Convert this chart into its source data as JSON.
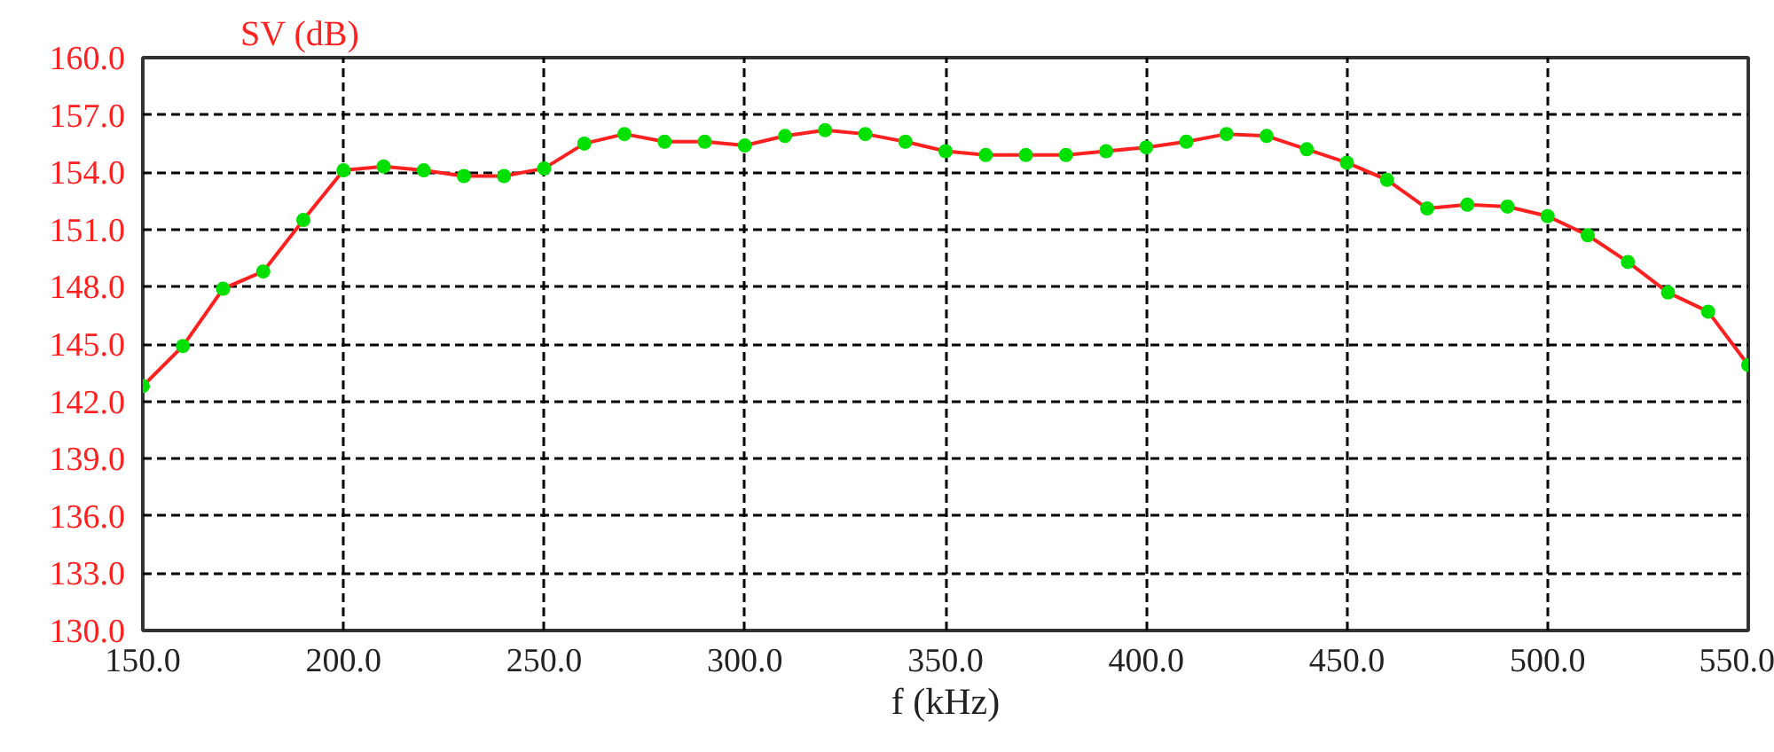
{
  "chart_data": {
    "type": "line",
    "ylabel": "SV (dB)",
    "xlabel": "f (kHz)",
    "x": [
      150,
      160,
      170,
      180,
      190,
      200,
      210,
      220,
      230,
      240,
      250,
      260,
      270,
      280,
      290,
      300,
      310,
      320,
      330,
      340,
      350,
      360,
      370,
      380,
      390,
      400,
      410,
      420,
      430,
      440,
      450,
      460,
      470,
      480,
      490,
      500,
      510,
      520,
      530,
      540,
      550
    ],
    "series": [
      {
        "color": "#ff2020",
        "colors": [
          "#00e000",
          "#00e000",
          "#00e000",
          "#00e000",
          "#00e000",
          "#00e000",
          "#00e000",
          "#00e000",
          "#00e000",
          "#00e000",
          "#00e000",
          "#00e000",
          "#00e000",
          "#00e000",
          "#00e000",
          "#00e000",
          "#00e000",
          "#00e000",
          "#00e000",
          "#00e000",
          "#00e000",
          "#00e000",
          "#00e000",
          "#00e000",
          "#00e000",
          "#00e000",
          "#00e000",
          "#00e000",
          "#00e000",
          "#00e000",
          "#00e000",
          "#00e000",
          "#00e000",
          "#00e000",
          "#00e000",
          "#00e000",
          "#00e000",
          "#00e000",
          "#00e000",
          "#00e000",
          "#00e000"
        ],
        "values": [
          142.8,
          144.9,
          147.9,
          148.8,
          151.5,
          154.1,
          154.3,
          154.1,
          153.8,
          153.8,
          154.2,
          155.5,
          156.0,
          155.6,
          155.6,
          155.4,
          155.9,
          156.2,
          156.0,
          155.6,
          155.1,
          154.9,
          154.9,
          154.9,
          155.1,
          155.3,
          155.6,
          156.0,
          155.9,
          155.2,
          154.5,
          153.6,
          152.1,
          152.3,
          152.2,
          151.7,
          150.7,
          149.3,
          147.7,
          146.7,
          143.9
        ]
      }
    ],
    "xlim": [
      150,
      550
    ],
    "ylim": [
      130,
      160
    ],
    "xticks": [
      {
        "value": 150,
        "label": "150.0"
      },
      {
        "value": 200,
        "label": "200.0"
      },
      {
        "value": 250,
        "label": "250.0"
      },
      {
        "value": 300,
        "label": "300.0"
      },
      {
        "value": 350,
        "label": "350.0"
      },
      {
        "value": 400,
        "label": "400.0"
      },
      {
        "value": 450,
        "label": "450.0"
      },
      {
        "value": 500,
        "label": "500.0"
      },
      {
        "value": 550,
        "label": "550.0"
      }
    ],
    "yticks": [
      {
        "value": 130,
        "label": "130.0"
      },
      {
        "value": 133,
        "label": "133.0"
      },
      {
        "value": 136,
        "label": "136.0"
      },
      {
        "value": 139,
        "label": "139.0"
      },
      {
        "value": 142,
        "label": "142.0"
      },
      {
        "value": 145,
        "label": "145.0"
      },
      {
        "value": 148,
        "label": "148.0"
      },
      {
        "value": 151,
        "label": "151.0"
      },
      {
        "value": 154,
        "label": "154.0"
      },
      {
        "value": 157,
        "label": "157.0"
      },
      {
        "value": 160,
        "label": "160.0"
      }
    ],
    "grid": true,
    "marker": "circle",
    "line_style": "solid"
  }
}
